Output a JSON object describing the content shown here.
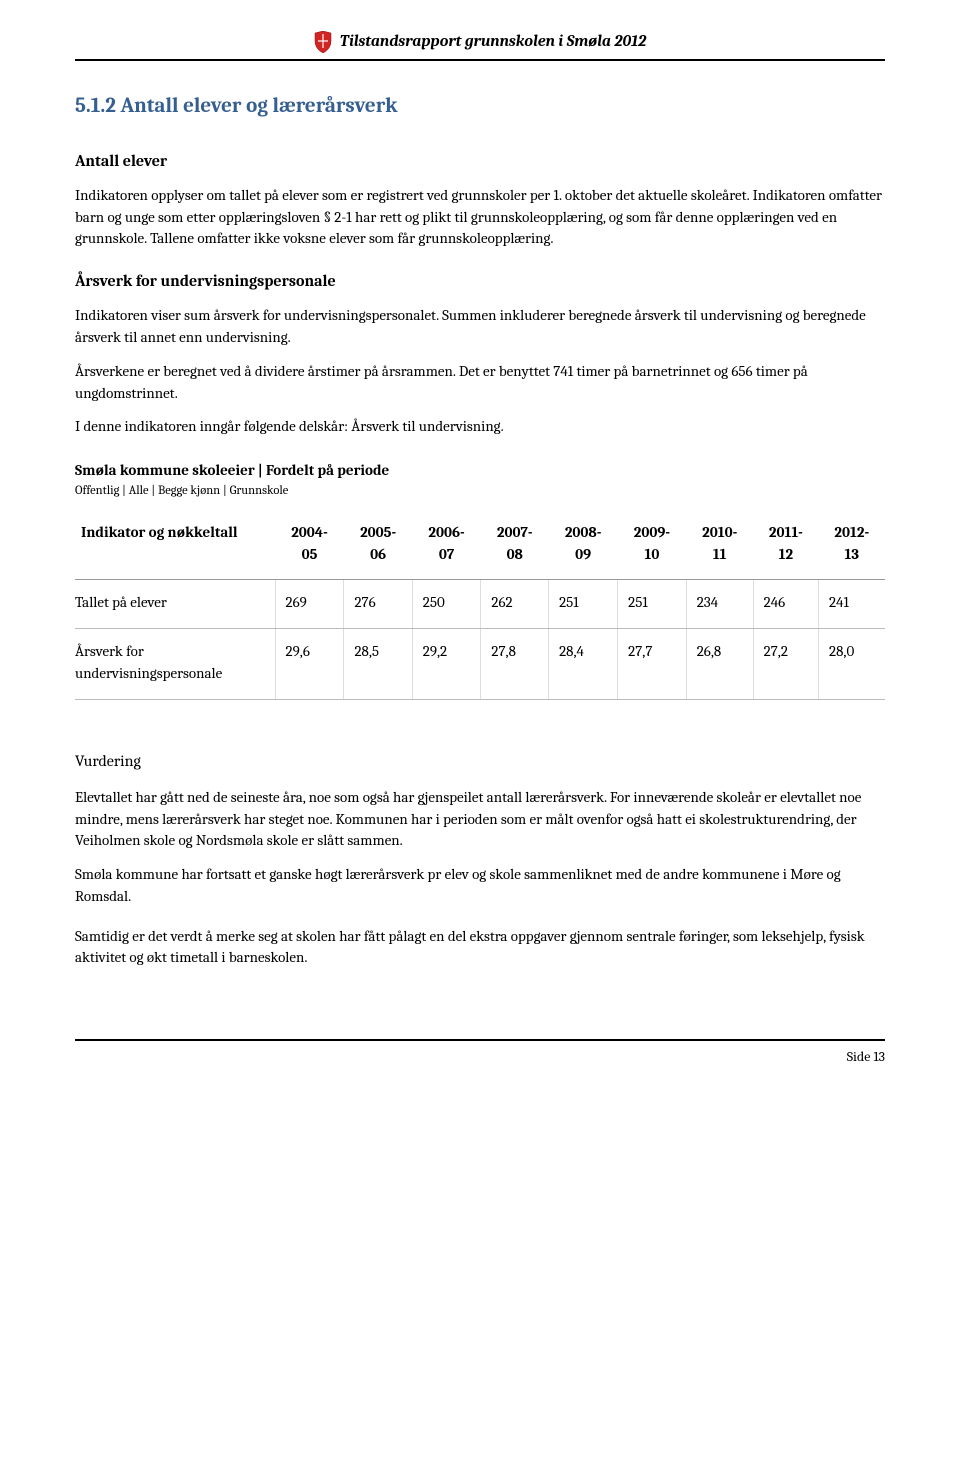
{
  "header": {
    "title": "Tilstandsrapport grunnskolen i Smøla 2012"
  },
  "section": {
    "number_title": "5.1.2   Antall elever og lærerårsverk",
    "heading_color": "#365f91"
  },
  "sub1": {
    "title": "Antall elever",
    "para": "Indikatoren opplyser om tallet på elever som er registrert ved grunnskoler per 1. oktober det aktuelle skoleåret. Indikatoren omfatter barn og unge som etter opplæringsloven § 2-1 har rett og plikt til grunnskoleopplæring, og som får denne opplæringen ved en grunnskole. Tallene omfatter ikke voksne elever som får grunnskoleopplæring."
  },
  "sub2": {
    "title": "Årsverk for undervisningspersonale",
    "para1": "Indikatoren viser sum årsverk for undervisningspersonalet. Summen inkluderer beregnede årsverk til undervisning og beregnede årsverk til annet enn undervisning.",
    "para2": "Årsverkene er beregnet ved å dividere årstimer på årsrammen. Det er benyttet 741 timer på barnetrinnet og 656 timer på ungdomstrinnet.",
    "para3": "I denne indikatoren inngår følgende delskår: Årsverk til undervisning."
  },
  "table_meta": {
    "title": "Smøla kommune skoleeier | Fordelt på periode",
    "subtitle": "Offentlig | Alle | Begge kjønn | Grunnskole"
  },
  "table": {
    "col0_header": "Indikator og nøkkeltall",
    "periods": [
      "2004-05",
      "2005-06",
      "2006-07",
      "2007-08",
      "2008-09",
      "2009-10",
      "2010-11",
      "2011-12",
      "2012-13"
    ],
    "rows": [
      {
        "label": "Tallet på elever",
        "values": [
          "269",
          "276",
          "250",
          "262",
          "251",
          "251",
          "234",
          "246",
          "241"
        ]
      },
      {
        "label": "Årsverk for undervisningspersonale",
        "values": [
          "29,6",
          "28,5",
          "29,2",
          "27,8",
          "28,4",
          "27,7",
          "26,8",
          "27,2",
          "28,0"
        ]
      }
    ]
  },
  "vurdering": {
    "title": "Vurdering",
    "para1": "Elevtallet har gått ned de seineste åra, noe som også har gjenspeilet antall lærerårsverk. For inneværende skoleår er elevtallet noe mindre, mens lærerårsverk har steget noe. Kommunen har i perioden som er målt ovenfor også hatt ei skolestrukturendring, der Veiholmen skole og Nordsmøla skole er slått sammen.",
    "para2": "Smøla kommune har fortsatt et ganske høgt lærerårsverk pr elev og skole sammenliknet med de andre kommunene i Møre og Romsdal.",
    "para3": "Samtidig er det verdt å merke seg at skolen har fått pålagt en del ekstra oppgaver gjennom sentrale føringer, som leksehjelp, fysisk aktivitet og økt timetall i barneskolen."
  },
  "footer": {
    "page": "Side 13"
  }
}
